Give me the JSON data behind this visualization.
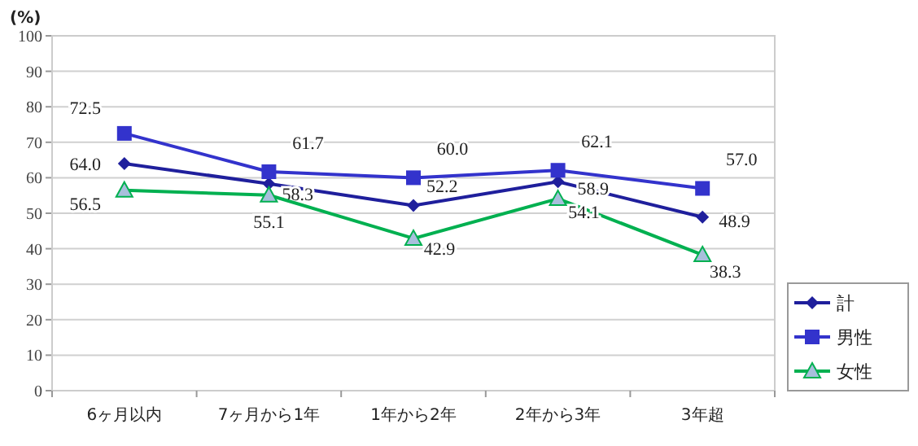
{
  "chart_data": {
    "type": "line",
    "ylabel": "(%)",
    "categories": [
      "6ヶ月以内",
      "7ヶ月から1年",
      "1年から2年",
      "2年から3年",
      "3年超"
    ],
    "series": [
      {
        "name": "計",
        "color": "#1f1f9c",
        "marker": "diamond",
        "values": [
          64.0,
          58.3,
          52.2,
          58.9,
          48.9
        ],
        "value_labels": [
          "64.0",
          "58.3",
          "52.2",
          "58.9",
          "48.9"
        ]
      },
      {
        "name": "男性",
        "color": "#3333cc",
        "marker": "square",
        "values": [
          72.5,
          61.7,
          60.0,
          62.1,
          57.0
        ],
        "value_labels": [
          "72.5",
          "61.7",
          "60.0",
          "62.1",
          "57.0"
        ]
      },
      {
        "name": "女性",
        "color": "#00b050",
        "marker": "triangle",
        "values": [
          56.5,
          55.1,
          42.9,
          54.1,
          38.3
        ],
        "value_labels": [
          "56.5",
          "55.1",
          "42.9",
          "54.1",
          "38.3"
        ]
      }
    ],
    "ylim": [
      0,
      100
    ],
    "yticks": [
      0,
      10,
      20,
      30,
      40,
      50,
      60,
      70,
      80,
      90,
      100
    ],
    "grid": "y",
    "legend": "bottom right"
  }
}
